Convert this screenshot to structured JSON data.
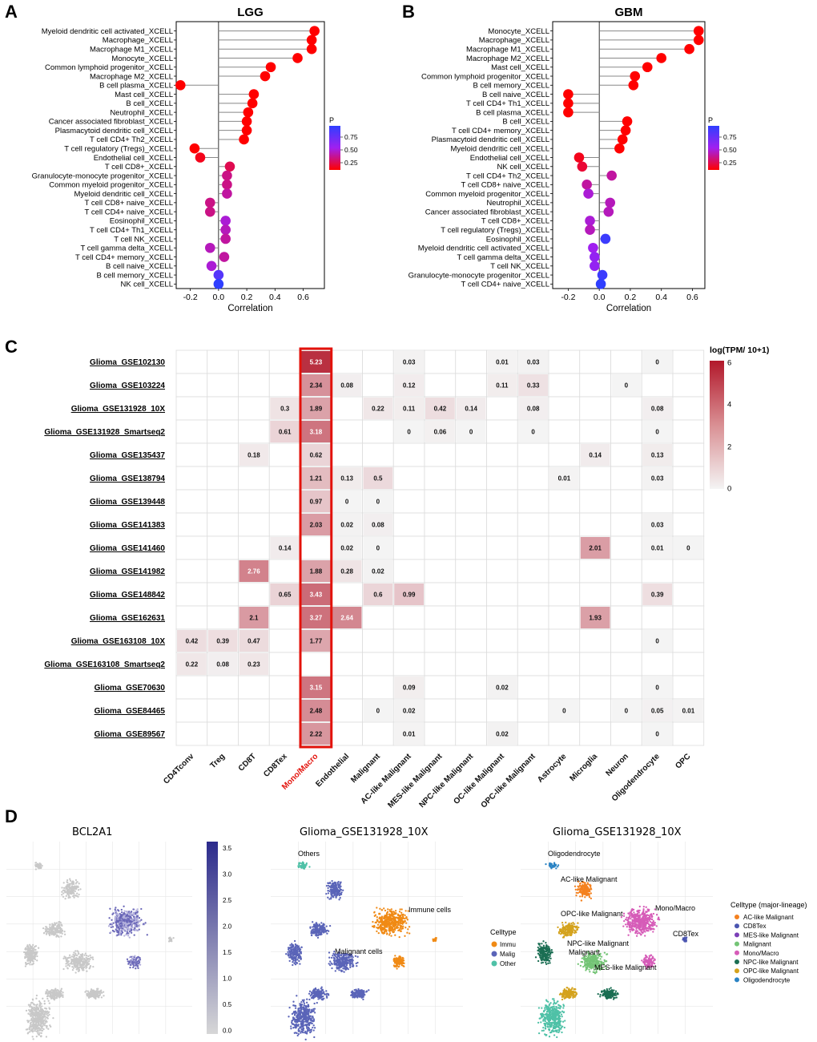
{
  "panels": {
    "a": {
      "letter": "A",
      "title": "LGG",
      "xlabel": "Correlation",
      "legend_title": "P",
      "legend_ticks": [
        "0.75",
        "0.50",
        "0.25"
      ]
    },
    "b": {
      "letter": "B",
      "title": "GBM",
      "xlabel": "Correlation",
      "legend_title": "P",
      "legend_ticks": [
        "0.75",
        "0.50",
        "0.25"
      ]
    },
    "c": {
      "letter": "C",
      "legend_title": "log(TPM/ 10+1)",
      "legend_ticks": [
        "6",
        "4",
        "2",
        "0"
      ]
    },
    "d": {
      "letter": "D",
      "umap1_title": "BCL2A1",
      "umap1_scale_ticks": [
        "3.5",
        "3.0",
        "2.5",
        "2.0",
        "1.5",
        "1.0",
        "0.5",
        "0.0"
      ],
      "umap2_title": "Glioma_GSE131928_10X",
      "umap2_legend_title": "Celltype",
      "umap2_legend_items": [
        "Immu",
        "Malig",
        "Other"
      ],
      "umap2_labels": [
        "Others",
        "Immune cells",
        "Malignant cells"
      ],
      "umap3_title": "Glioma_GSE131928_10X",
      "umap3_legend_title": "Celltype (major-lineage)",
      "umap3_legend_items": [
        "AC-like Malignant",
        "CD8Tex",
        "MES-like Malignant",
        "Malignant",
        "Mono/Macro",
        "NPC-like Malignant",
        "OPC-like Malignant",
        "Oligodendrocyte"
      ],
      "umap3_labels": [
        "Oligodendrocyte",
        "AC-like Malignant",
        "OPC-like Malignant",
        "Mono/Macro",
        "CD8Tex",
        "NPC-like Malignant",
        "Malignant",
        "MES-like Malignant"
      ]
    }
  },
  "chart_data": [
    {
      "type": "scatter",
      "subtype": "lollipop",
      "title": "LGG",
      "xlabel": "Correlation",
      "ylabel": "",
      "xlim": [
        -0.3,
        0.75
      ],
      "xticks": [
        "-0.2",
        "0.0",
        "0.2",
        "0.4",
        "0.6"
      ],
      "categories": [
        "Myeloid dendritic cell activated_XCELL",
        "Macrophage_XCELL",
        "Macrophage M1_XCELL",
        "Monocyte_XCELL",
        "Common lymphoid progenitor_XCELL",
        "Macrophage M2_XCELL",
        "B cell plasma_XCELL",
        "Mast cell_XCELL",
        "B cell_XCELL",
        "Neutrophil_XCELL",
        "Cancer associated fibroblast_XCELL",
        "Plasmacytoid dendritic cell_XCELL",
        "T cell CD4+ Th2_XCELL",
        "T cell regulatory (Tregs)_XCELL",
        "Endothelial cell_XCELL",
        "T cell CD8+_XCELL",
        "Granulocyte-monocyte progenitor_XCELL",
        "Common myeloid progenitor_XCELL",
        "Myeloid dendritic cell_XCELL",
        "T cell CD8+ naive_XCELL",
        "T cell CD4+ naive_XCELL",
        "Eosinophil_XCELL",
        "T cell CD4+ Th1_XCELL",
        "T cell NK_XCELL",
        "T cell gamma delta_XCELL",
        "T cell CD4+ memory_XCELL",
        "B cell naive_XCELL",
        "B cell memory_XCELL",
        "NK cell_XCELL"
      ],
      "values": [
        0.68,
        0.66,
        0.66,
        0.56,
        0.37,
        0.33,
        -0.27,
        0.25,
        0.24,
        0.21,
        0.2,
        0.2,
        0.18,
        -0.17,
        -0.13,
        0.08,
        0.06,
        0.06,
        0.06,
        -0.06,
        -0.06,
        0.05,
        0.05,
        0.05,
        -0.06,
        0.04,
        -0.05,
        0.0,
        0.0
      ],
      "p_values": [
        0.05,
        0.05,
        0.05,
        0.05,
        0.05,
        0.05,
        0.05,
        0.05,
        0.05,
        0.05,
        0.05,
        0.05,
        0.05,
        0.05,
        0.1,
        0.2,
        0.3,
        0.3,
        0.35,
        0.3,
        0.3,
        0.45,
        0.4,
        0.35,
        0.4,
        0.35,
        0.45,
        0.8,
        0.95
      ],
      "color_legend": {
        "title": "P",
        "ticks": [
          0.75,
          0.5,
          0.25
        ]
      }
    },
    {
      "type": "scatter",
      "subtype": "lollipop",
      "title": "GBM",
      "xlabel": "Correlation",
      "ylabel": "",
      "xlim": [
        -0.3,
        0.68
      ],
      "xticks": [
        "-0.2",
        "0.0",
        "0.2",
        "0.4",
        "0.6"
      ],
      "categories": [
        "Monocyte_XCELL",
        "Macrophage_XCELL",
        "Macrophage M1_XCELL",
        "Macrophage M2_XCELL",
        "Mast cell_XCELL",
        "Common lymphoid progenitor_XCELL",
        "B cell memory_XCELL",
        "B cell naive_XCELL",
        "T cell CD4+ Th1_XCELL",
        "B cell plasma_XCELL",
        "B cell_XCELL",
        "T cell CD4+ memory_XCELL",
        "Plasmacytoid dendritic cell_XCELL",
        "Myeloid dendritic cell_XCELL",
        "Endothelial cell_XCELL",
        "NK cell_XCELL",
        "T cell CD4+ Th2_XCELL",
        "T cell CD8+ naive_XCELL",
        "Common myeloid progenitor_XCELL",
        "Neutrophil_XCELL",
        "Cancer associated fibroblast_XCELL",
        "T cell CD8+_XCELL",
        "T cell regulatory (Tregs)_XCELL",
        "Eosinophil_XCELL",
        "Myeloid dendritic cell activated_XCELL",
        "T cell gamma delta_XCELL",
        "T cell NK_XCELL",
        "Granulocyte-monocyte progenitor_XCELL",
        "T cell CD4+ naive_XCELL"
      ],
      "values": [
        0.64,
        0.64,
        0.58,
        0.4,
        0.31,
        0.23,
        0.22,
        -0.2,
        -0.2,
        -0.2,
        0.18,
        0.17,
        0.15,
        0.13,
        -0.13,
        -0.11,
        0.08,
        -0.08,
        -0.07,
        0.07,
        0.06,
        -0.06,
        -0.06,
        0.04,
        -0.04,
        -0.03,
        -0.03,
        0.02,
        0.01
      ],
      "p_values": [
        0.05,
        0.05,
        0.05,
        0.05,
        0.05,
        0.05,
        0.05,
        0.05,
        0.05,
        0.05,
        0.05,
        0.05,
        0.05,
        0.05,
        0.1,
        0.15,
        0.35,
        0.35,
        0.45,
        0.4,
        0.4,
        0.45,
        0.4,
        0.9,
        0.5,
        0.55,
        0.55,
        0.9,
        0.95
      ],
      "color_legend": {
        "title": "P",
        "ticks": [
          0.75,
          0.5,
          0.25
        ]
      }
    },
    {
      "type": "heatmap",
      "title": "",
      "value_label": "log(TPM/ 10+1)",
      "scale": [
        0,
        6
      ],
      "highlight_column": "Mono/Macro",
      "rows": [
        "Glioma_GSE102130",
        "Glioma_GSE103224",
        "Glioma_GSE131928_10X",
        "Glioma_GSE131928_Smartseq2",
        "Glioma_GSE135437",
        "Glioma_GSE138794",
        "Glioma_GSE139448",
        "Glioma_GSE141383",
        "Glioma_GSE141460",
        "Glioma_GSE141982",
        "Glioma_GSE148842",
        "Glioma_GSE162631",
        "Glioma_GSE163108_10X",
        "Glioma_GSE163108_Smartseq2",
        "Glioma_GSE70630",
        "Glioma_GSE84465",
        "Glioma_GSE89567"
      ],
      "columns": [
        "CD4Tconv",
        "Treg",
        "CD8T",
        "CD8Tex",
        "Mono/Macro",
        "Endothelial",
        "Malignant",
        "AC-like Malignant",
        "MES-like Malignant",
        "NPC-like Malignant",
        "OC-like Malignant",
        "OPC-like Malignant",
        "Astrocyte",
        "Microglia",
        "Neuron",
        "Oligodendrocyte",
        "OPC"
      ],
      "values": [
        [
          null,
          null,
          null,
          null,
          "5.23",
          null,
          null,
          "0.03",
          null,
          null,
          "0.01",
          "0.03",
          null,
          null,
          null,
          "0",
          null
        ],
        [
          null,
          null,
          null,
          null,
          "2.34",
          "0.08",
          null,
          "0.12",
          null,
          null,
          "0.11",
          "0.33",
          null,
          null,
          "0",
          null,
          null
        ],
        [
          null,
          null,
          null,
          "0.3",
          "1.89",
          null,
          "0.22",
          "0.11",
          "0.42",
          "0.14",
          null,
          "0.08",
          null,
          null,
          null,
          "0.08",
          null
        ],
        [
          null,
          null,
          null,
          "0.61",
          "3.18",
          null,
          null,
          "0",
          "0.06",
          "0",
          null,
          "0",
          null,
          null,
          null,
          "0",
          null
        ],
        [
          null,
          null,
          "0.18",
          null,
          "0.62",
          null,
          null,
          null,
          null,
          null,
          null,
          null,
          null,
          "0.14",
          null,
          "0.13",
          null
        ],
        [
          null,
          null,
          null,
          null,
          "1.21",
          "0.13",
          "0.5",
          null,
          null,
          null,
          null,
          null,
          "0.01",
          null,
          null,
          "0.03",
          null
        ],
        [
          null,
          null,
          null,
          null,
          "0.97",
          "0",
          "0",
          null,
          null,
          null,
          null,
          null,
          null,
          null,
          null,
          null,
          null
        ],
        [
          null,
          null,
          null,
          null,
          "2.03",
          "0.02",
          "0.08",
          null,
          null,
          null,
          null,
          null,
          null,
          null,
          null,
          "0.03",
          null
        ],
        [
          null,
          null,
          null,
          "0.14",
          null,
          "0.02",
          "0",
          null,
          null,
          null,
          null,
          null,
          null,
          "2.01",
          null,
          "0.01",
          "0"
        ],
        [
          null,
          null,
          "2.76",
          null,
          "1.88",
          "0.28",
          "0.02",
          null,
          null,
          null,
          null,
          null,
          null,
          null,
          null,
          null,
          null
        ],
        [
          null,
          null,
          null,
          "0.65",
          "3.43",
          null,
          "0.6",
          "0.99",
          null,
          null,
          null,
          null,
          null,
          null,
          null,
          "0.39",
          null
        ],
        [
          null,
          null,
          "2.1",
          null,
          "3.27",
          "2.64",
          null,
          null,
          null,
          null,
          null,
          null,
          null,
          "1.93",
          null,
          null,
          null
        ],
        [
          "0.42",
          "0.39",
          "0.47",
          null,
          "1.77",
          null,
          null,
          null,
          null,
          null,
          null,
          null,
          null,
          null,
          null,
          "0",
          null
        ],
        [
          "0.22",
          "0.08",
          "0.23",
          null,
          null,
          null,
          null,
          null,
          null,
          null,
          null,
          null,
          null,
          null,
          null,
          null,
          null
        ],
        [
          null,
          null,
          null,
          null,
          "3.15",
          null,
          null,
          "0.09",
          null,
          null,
          "0.02",
          null,
          null,
          null,
          null,
          "0",
          null
        ],
        [
          null,
          null,
          null,
          null,
          "2.48",
          null,
          "0",
          "0.02",
          null,
          null,
          null,
          null,
          "0",
          null,
          "0",
          "0.05",
          "0.01"
        ],
        [
          null,
          null,
          null,
          null,
          "2.22",
          null,
          null,
          "0.01",
          null,
          null,
          "0.02",
          null,
          null,
          null,
          null,
          "0",
          null
        ]
      ]
    }
  ],
  "colors": {
    "heat_low": "#f4f4f4",
    "heat_high": "#b2182b",
    "highlight": "#e3120b",
    "p_low": "#ff0000",
    "p_mid": "#a020f0",
    "p_high": "#2f3fff",
    "ac_like": "#f4811f",
    "cd8tex": "#4a55b0",
    "mes_like": "#7b3fb7",
    "malignant": "#74c476",
    "mono_macro": "#d65cb8",
    "npc_like": "#1b6e53",
    "opc_like": "#d4a21c",
    "oligodendrocyte": "#2a83c4",
    "immune": "#f08a15",
    "malig_blue": "#5a64b8",
    "others_teal": "#4fc1a7",
    "bcl2a1_hi": "#2b2a8c"
  }
}
